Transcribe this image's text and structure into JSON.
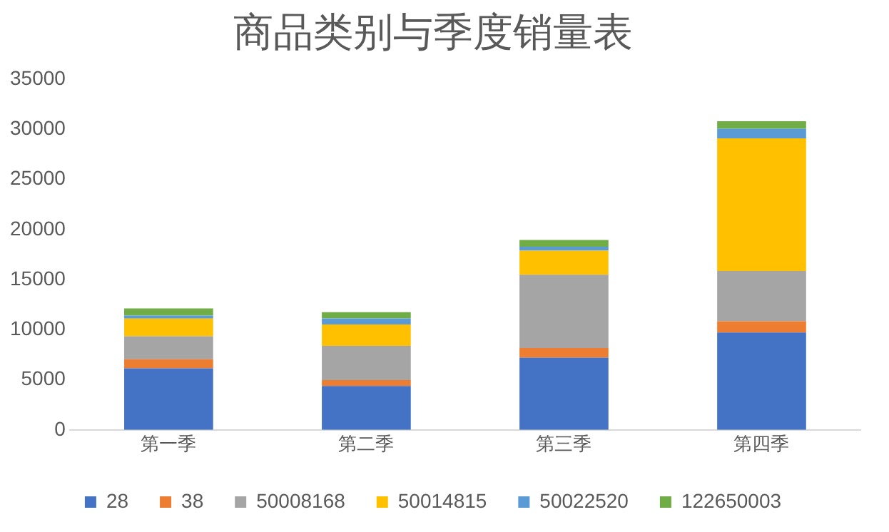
{
  "chart_data": {
    "type": "bar",
    "title": "商品类别与季度销量表",
    "categories": [
      "第一季",
      "第二季",
      "第三季",
      "第四季"
    ],
    "stacked": true,
    "ylim": [
      0,
      35000
    ],
    "yticks": [
      0,
      5000,
      10000,
      15000,
      20000,
      25000,
      30000,
      35000
    ],
    "grid": false,
    "legend": "bottom",
    "series": [
      {
        "name": "28",
        "color": "#4472c4",
        "values": [
          6140,
          4380,
          7210,
          9720
        ]
      },
      {
        "name": "38",
        "color": "#ed7d31",
        "values": [
          910,
          590,
          960,
          1120
        ]
      },
      {
        "name": "50008168",
        "color": "#a5a5a5",
        "values": [
          2300,
          3410,
          7320,
          5020
        ]
      },
      {
        "name": "50014815",
        "color": "#ffc000",
        "values": [
          1760,
          2140,
          2400,
          13240
        ]
      },
      {
        "name": "50022520",
        "color": "#5b9bd5",
        "values": [
          300,
          600,
          400,
          960
        ]
      },
      {
        "name": "122650003",
        "color": "#70ad47",
        "values": [
          710,
          630,
          670,
          750
        ]
      }
    ]
  }
}
